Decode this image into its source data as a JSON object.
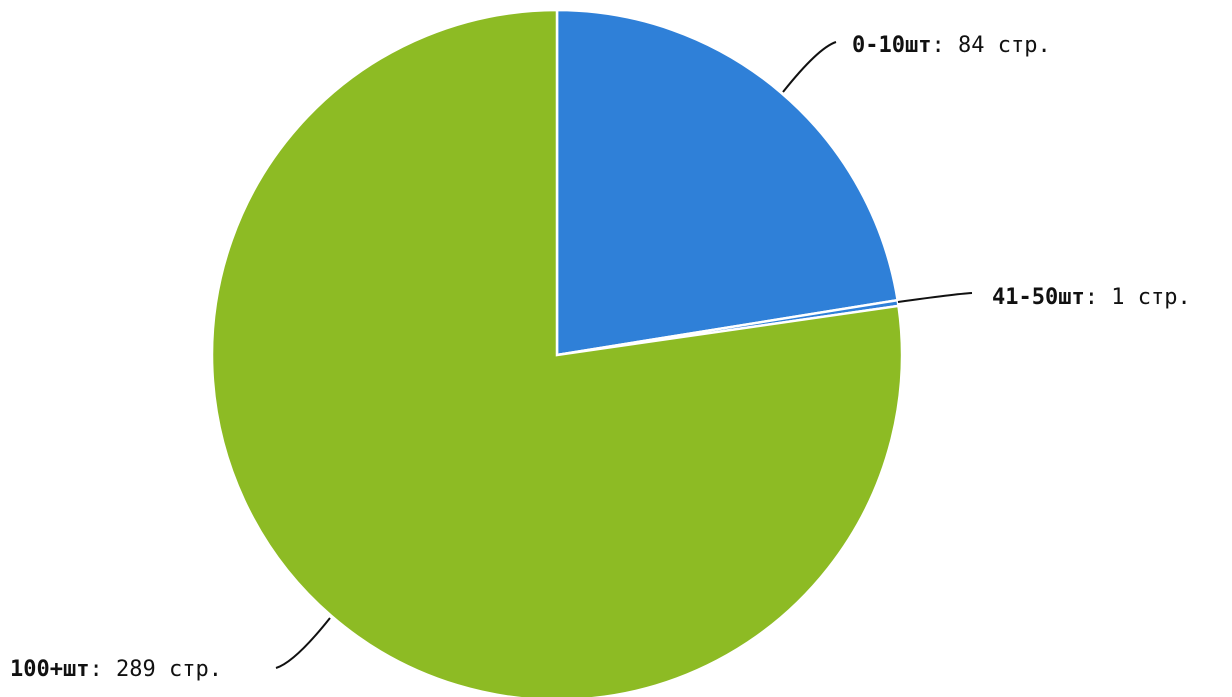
{
  "chart_data": {
    "type": "pie",
    "title": "",
    "unit": "стр.",
    "slices": [
      {
        "label": "0-10шт",
        "value": 84,
        "display": "84 стр.",
        "color": "#2f80d8"
      },
      {
        "label": "41-50шт",
        "value": 1,
        "display": "1 стр.",
        "color": "#2f80d8"
      },
      {
        "label": "100+шт",
        "value": 289,
        "display": "289 стр.",
        "color": "#8dbb24"
      }
    ],
    "legend": "none",
    "label_placement": "outside-with-leader-lines"
  }
}
